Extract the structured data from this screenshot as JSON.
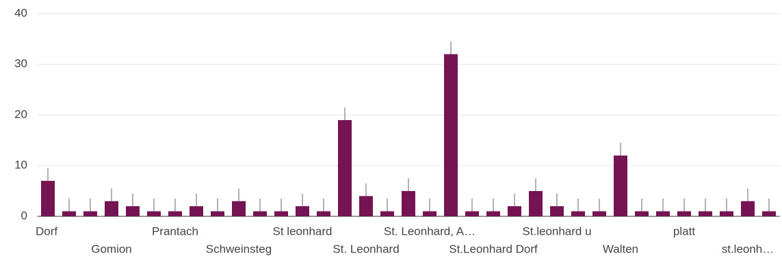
{
  "chart_data": {
    "type": "bar",
    "categories": [
      "Dorf",
      null,
      null,
      "Gomion",
      null,
      null,
      "Prantach",
      null,
      null,
      "Schweinsteg",
      null,
      null,
      "St leonhard",
      null,
      null,
      "St. Leonhard",
      null,
      null,
      "St. Leonhard, A…",
      null,
      null,
      "St.Leonhard Dorf",
      null,
      null,
      "St.leonhard u",
      null,
      null,
      "Walten",
      null,
      null,
      "platt",
      null,
      null,
      "st.leonh…",
      null
    ],
    "values": [
      7,
      1,
      1,
      3,
      2,
      1,
      1,
      2,
      1,
      3,
      1,
      1,
      2,
      1,
      19,
      4,
      1,
      5,
      1,
      32,
      1,
      1,
      2,
      5,
      2,
      1,
      1,
      12,
      1,
      1,
      1,
      1,
      1,
      3,
      1
    ],
    "errors": [
      2.5,
      2.5,
      2.5,
      2.5,
      2.5,
      2.5,
      2.5,
      2.5,
      2.5,
      2.5,
      2.5,
      2.5,
      2.5,
      2.5,
      2.5,
      2.5,
      2.5,
      2.5,
      2.5,
      2.5,
      2.5,
      2.5,
      2.5,
      2.5,
      2.5,
      2.5,
      2.5,
      2.5,
      2.5,
      2.5,
      2.5,
      2.5,
      2.5,
      2.5,
      2.5
    ],
    "color": "#751453",
    "ylim": [
      0,
      40
    ],
    "yticks": [
      0,
      10,
      20,
      30,
      40
    ],
    "grid": true
  }
}
